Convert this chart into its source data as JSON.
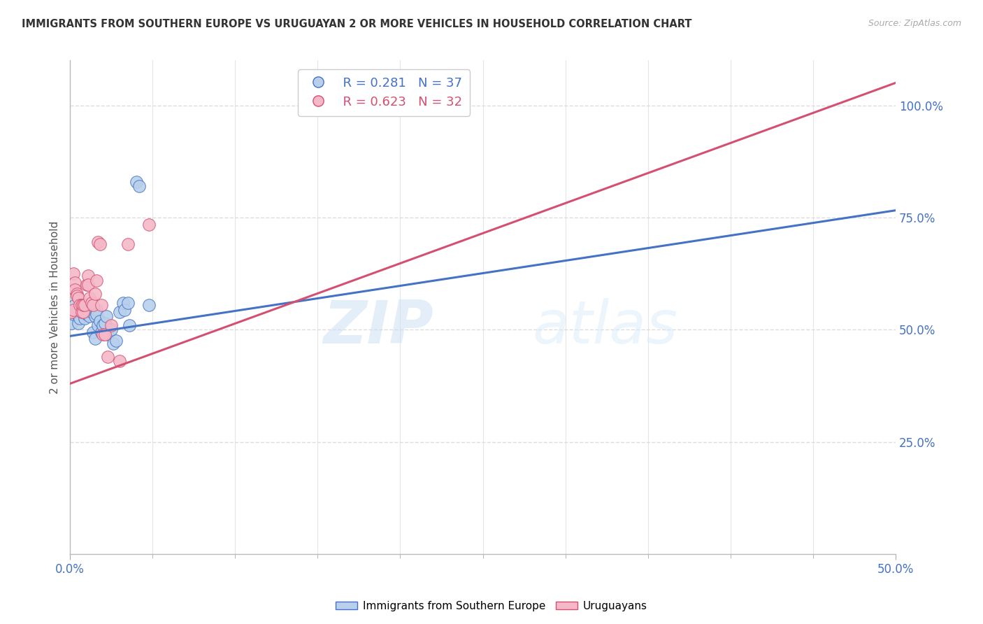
{
  "title": "IMMIGRANTS FROM SOUTHERN EUROPE VS URUGUAYAN 2 OR MORE VEHICLES IN HOUSEHOLD CORRELATION CHART",
  "source": "Source: ZipAtlas.com",
  "ylabel": "2 or more Vehicles in Household",
  "xlim": [
    0.0,
    0.5
  ],
  "ylim": [
    0.0,
    1.1
  ],
  "xtick_labels": [
    "0.0%",
    "",
    "",
    "",
    "",
    "",
    "",
    "",
    "",
    "50.0%"
  ],
  "xtick_vals": [
    0.0,
    0.05,
    0.1,
    0.15,
    0.2,
    0.25,
    0.3,
    0.35,
    0.4,
    0.5
  ],
  "ytick_labels": [
    "25.0%",
    "50.0%",
    "75.0%",
    "100.0%"
  ],
  "ytick_vals": [
    0.25,
    0.5,
    0.75,
    1.0
  ],
  "legend_label1": "Immigrants from Southern Europe",
  "legend_label2": "Uruguayans",
  "R1": 0.281,
  "N1": 37,
  "R2": 0.623,
  "N2": 32,
  "blue_color": "#b8d0eb",
  "pink_color": "#f5b8c8",
  "blue_line_color": "#4472c4",
  "pink_line_color": "#d45070",
  "blue_regression": [
    0.0,
    0.486,
    0.5,
    0.766
  ],
  "pink_regression": [
    0.0,
    0.38,
    0.5,
    1.05
  ],
  "blue_scatter": [
    [
      0.001,
      0.515
    ],
    [
      0.002,
      0.535
    ],
    [
      0.003,
      0.555
    ],
    [
      0.004,
      0.535
    ],
    [
      0.005,
      0.515
    ],
    [
      0.006,
      0.545
    ],
    [
      0.006,
      0.525
    ],
    [
      0.007,
      0.54
    ],
    [
      0.008,
      0.555
    ],
    [
      0.009,
      0.525
    ],
    [
      0.01,
      0.535
    ],
    [
      0.011,
      0.545
    ],
    [
      0.012,
      0.53
    ],
    [
      0.013,
      0.54
    ],
    [
      0.014,
      0.495
    ],
    [
      0.015,
      0.48
    ],
    [
      0.015,
      0.53
    ],
    [
      0.016,
      0.545
    ],
    [
      0.016,
      0.535
    ],
    [
      0.017,
      0.51
    ],
    [
      0.018,
      0.52
    ],
    [
      0.019,
      0.495
    ],
    [
      0.02,
      0.51
    ],
    [
      0.021,
      0.515
    ],
    [
      0.022,
      0.53
    ],
    [
      0.023,
      0.49
    ],
    [
      0.025,
      0.5
    ],
    [
      0.026,
      0.47
    ],
    [
      0.028,
      0.475
    ],
    [
      0.03,
      0.54
    ],
    [
      0.032,
      0.56
    ],
    [
      0.033,
      0.545
    ],
    [
      0.035,
      0.56
    ],
    [
      0.036,
      0.51
    ],
    [
      0.04,
      0.83
    ],
    [
      0.042,
      0.82
    ],
    [
      0.048,
      0.555
    ]
  ],
  "pink_scatter": [
    [
      0.001,
      0.54
    ],
    [
      0.002,
      0.545
    ],
    [
      0.002,
      0.625
    ],
    [
      0.003,
      0.605
    ],
    [
      0.003,
      0.59
    ],
    [
      0.004,
      0.58
    ],
    [
      0.004,
      0.575
    ],
    [
      0.005,
      0.57
    ],
    [
      0.006,
      0.555
    ],
    [
      0.007,
      0.555
    ],
    [
      0.007,
      0.54
    ],
    [
      0.008,
      0.54
    ],
    [
      0.008,
      0.555
    ],
    [
      0.009,
      0.555
    ],
    [
      0.01,
      0.6
    ],
    [
      0.011,
      0.62
    ],
    [
      0.011,
      0.6
    ],
    [
      0.012,
      0.57
    ],
    [
      0.013,
      0.56
    ],
    [
      0.014,
      0.555
    ],
    [
      0.015,
      0.58
    ],
    [
      0.016,
      0.61
    ],
    [
      0.017,
      0.695
    ],
    [
      0.018,
      0.69
    ],
    [
      0.019,
      0.555
    ],
    [
      0.02,
      0.49
    ],
    [
      0.021,
      0.49
    ],
    [
      0.023,
      0.44
    ],
    [
      0.025,
      0.51
    ],
    [
      0.03,
      0.43
    ],
    [
      0.035,
      0.69
    ],
    [
      0.048,
      0.735
    ]
  ],
  "watermark_zip": "ZIP",
  "watermark_atlas": "atlas",
  "background_color": "#ffffff",
  "grid_color": "#dddddd"
}
